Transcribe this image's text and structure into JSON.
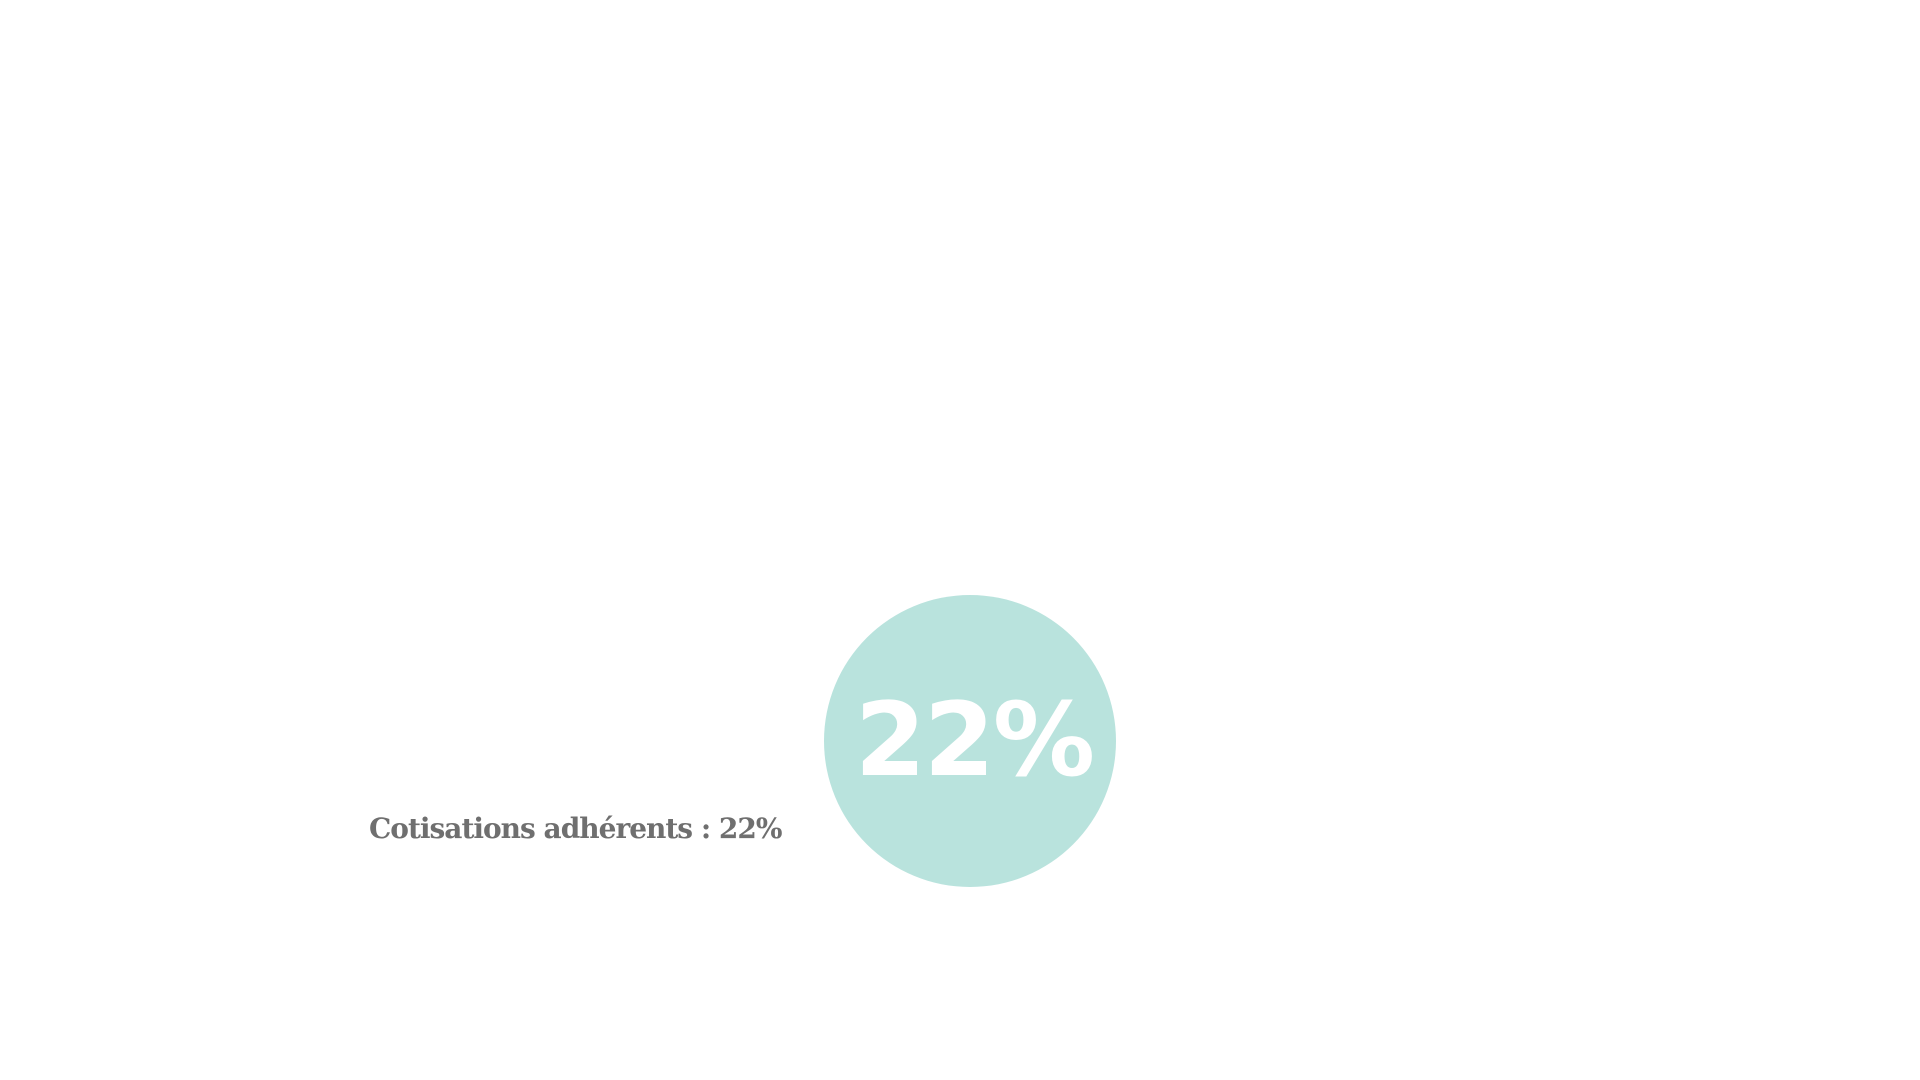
{
  "stat": {
    "value_label": "22%",
    "percent": 22,
    "caption": "Cotisations adhérents : 22%",
    "accent_color": "#b9e3dd",
    "caption_color": "#6f6f6f"
  }
}
